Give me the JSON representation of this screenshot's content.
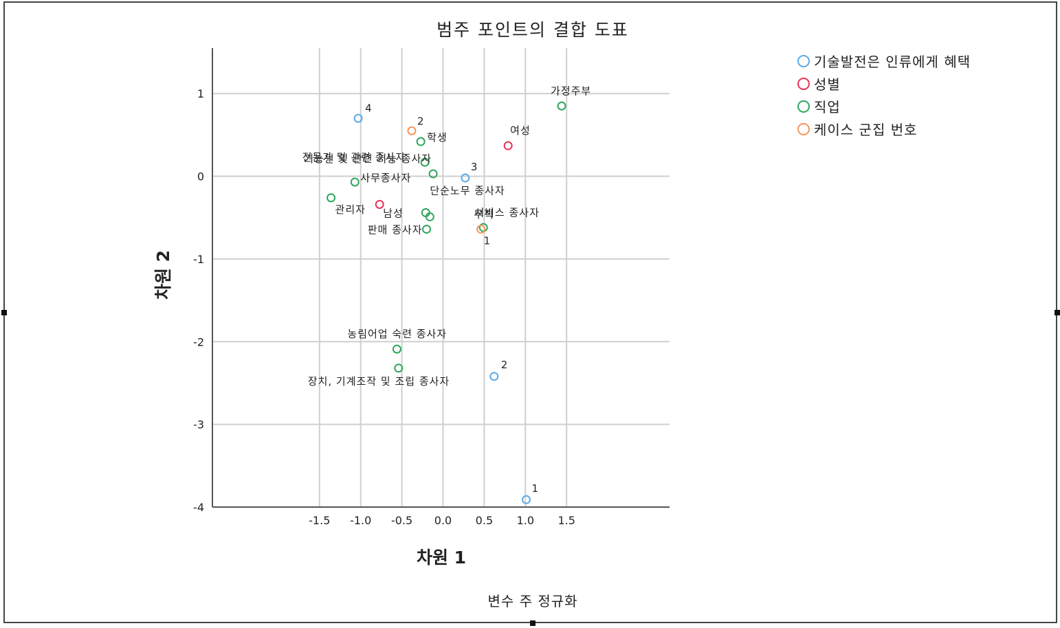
{
  "chart_data": {
    "type": "scatter",
    "title": "범주 포인트의 결합 도표",
    "xlabel": "차원 1",
    "ylabel": "차원 2",
    "footnote": "변수 주 정규화",
    "xlim": [
      -2.8,
      2.75
    ],
    "ylim": [
      -4.0,
      1.55
    ],
    "xticks": [
      -1.5,
      -1.0,
      -0.5,
      0.0,
      0.5,
      1.0,
      1.5
    ],
    "xtick_labels": [
      "-1.5",
      "-1.0",
      "-0.5",
      "0.0",
      "0.5",
      "1.0",
      "1.5"
    ],
    "yticks": [
      1,
      0,
      -1,
      -2,
      -3,
      -4
    ],
    "ytick_labels": [
      "1",
      "0",
      "-1",
      "-2",
      "-3",
      "-4"
    ],
    "grid": true,
    "legend_position": "top-right",
    "series": [
      {
        "name": "기술발전은 인류에게 혜택",
        "color": "#5aa9e6",
        "points": [
          {
            "label": "4",
            "x": -1.03,
            "y": 0.7
          },
          {
            "label": "3",
            "x": 0.27,
            "y": -0.02
          },
          {
            "label": "2",
            "x": 0.62,
            "y": -2.42
          },
          {
            "label": "1",
            "x": 1.01,
            "y": -3.91
          }
        ]
      },
      {
        "name": "성별",
        "color": "#e8315b",
        "points": [
          {
            "label": "여성",
            "x": 0.79,
            "y": 0.37
          },
          {
            "label": "남성",
            "x": -0.77,
            "y": -0.34
          }
        ]
      },
      {
        "name": "직업",
        "color": "#2fa55a",
        "points": [
          {
            "label": "가정주부",
            "x": 1.44,
            "y": 0.85
          },
          {
            "label": "학생",
            "x": -0.27,
            "y": 0.42
          },
          {
            "label": "전문가 및 관련 종사자",
            "x": -0.22,
            "y": 0.17
          },
          {
            "label": "기능원 및 관련 기능 종사자",
            "x": -0.12,
            "y": 0.03
          },
          {
            "label": "사무종사자",
            "x": -1.07,
            "y": -0.07
          },
          {
            "label": "관리자",
            "x": -1.36,
            "y": -0.26
          },
          {
            "label": "단순노무 종사자",
            "x": -0.21,
            "y": -0.44
          },
          {
            "label": "서비스 종사자",
            "x": -0.16,
            "y": -0.49
          },
          {
            "label": "판매 종사자",
            "x": -0.2,
            "y": -0.64
          },
          {
            "label": "무직",
            "x": 0.49,
            "y": -0.62
          },
          {
            "label": "농림어업 숙련 종사자",
            "x": -0.56,
            "y": -2.09
          },
          {
            "label": "장치, 기계조작 및 조립 종사자",
            "x": -0.54,
            "y": -2.32
          }
        ]
      },
      {
        "name": "케이스 군집 번호",
        "color": "#f4955a",
        "points": [
          {
            "label": "2",
            "x": -0.38,
            "y": 0.55
          },
          {
            "label": "1",
            "x": 0.46,
            "y": -0.64
          }
        ]
      }
    ]
  }
}
